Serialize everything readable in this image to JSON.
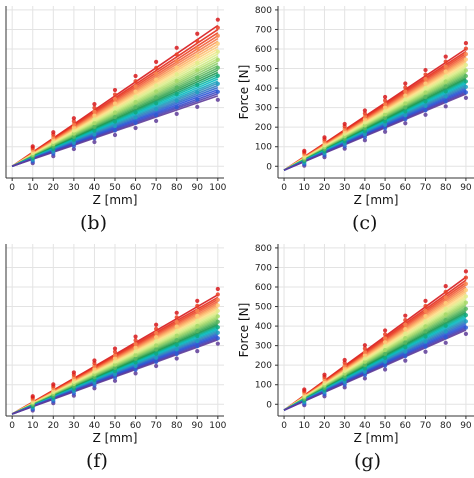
{
  "chart_data": [
    {
      "panel": "(b)",
      "type": "line",
      "xlabel": "Z [mm]",
      "ylabel": "",
      "xticks": [
        "0",
        "10",
        "20",
        "30",
        "40",
        "50",
        "60",
        "70",
        "80",
        "90",
        "100"
      ],
      "yticks": [],
      "xlim": [
        -3,
        103
      ],
      "ylim": [
        -60,
        820
      ],
      "x": [
        0,
        10,
        20,
        30,
        40,
        50,
        60,
        70,
        80,
        90,
        100
      ],
      "series_count": 30,
      "value_range_at_x100": [
        360,
        720
      ],
      "value_at_x0": 0,
      "grid": true
    },
    {
      "panel": "(c)",
      "type": "line",
      "xlabel": "Z [mm]",
      "ylabel": "Force [N]",
      "xticks": [
        "0",
        "10",
        "20",
        "30",
        "40",
        "50",
        "60",
        "70",
        "80",
        "90"
      ],
      "yticks": [
        "0",
        "100",
        "200",
        "300",
        "400",
        "500",
        "600",
        "700",
        "800"
      ],
      "xlim": [
        -3,
        94
      ],
      "ylim": [
        -60,
        820
      ],
      "x": [
        0,
        10,
        20,
        30,
        40,
        50,
        60,
        70,
        80,
        90
      ],
      "series_count": 30,
      "value_range_at_x90": [
        370,
        600
      ],
      "value_at_x0": -20,
      "grid": true
    },
    {
      "panel": "(f)",
      "type": "line",
      "xlabel": "Z [mm]",
      "ylabel": "",
      "xticks": [
        "0",
        "10",
        "20",
        "30",
        "40",
        "50",
        "60",
        "70",
        "80",
        "90",
        "100"
      ],
      "yticks": [],
      "xlim": [
        -3,
        103
      ],
      "ylim": [
        -60,
        820
      ],
      "x": [
        0,
        10,
        20,
        30,
        40,
        50,
        60,
        70,
        80,
        90,
        100
      ],
      "series_count": 30,
      "value_range_at_x100": [
        330,
        560
      ],
      "value_at_x0": -50,
      "grid": true
    },
    {
      "panel": "(g)",
      "type": "line",
      "xlabel": "Z [mm]",
      "ylabel": "Force [N]",
      "xticks": [
        "0",
        "10",
        "20",
        "30",
        "40",
        "50",
        "60",
        "70",
        "80",
        "90"
      ],
      "yticks": [
        "0",
        "100",
        "200",
        "300",
        "400",
        "500",
        "600",
        "700",
        "800"
      ],
      "xlim": [
        -3,
        94
      ],
      "ylim": [
        -60,
        820
      ],
      "x": [
        0,
        10,
        20,
        30,
        40,
        50,
        60,
        70,
        80,
        90
      ],
      "series_count": 30,
      "value_range_at_x90": [
        380,
        650
      ],
      "value_at_x0": -30,
      "grid": true
    }
  ],
  "labels": {
    "b": "(b)",
    "c": "(c)",
    "f": "(f)",
    "g": "(g)"
  },
  "palette": [
    "#d7191c",
    "#e8341c",
    "#f46d43",
    "#fdae61",
    "#fee08b",
    "#d9ef8b",
    "#a6d96a",
    "#66bd63",
    "#1a9850",
    "#00c0c0",
    "#3288bd",
    "#2b4fd9",
    "#5e3c99"
  ]
}
